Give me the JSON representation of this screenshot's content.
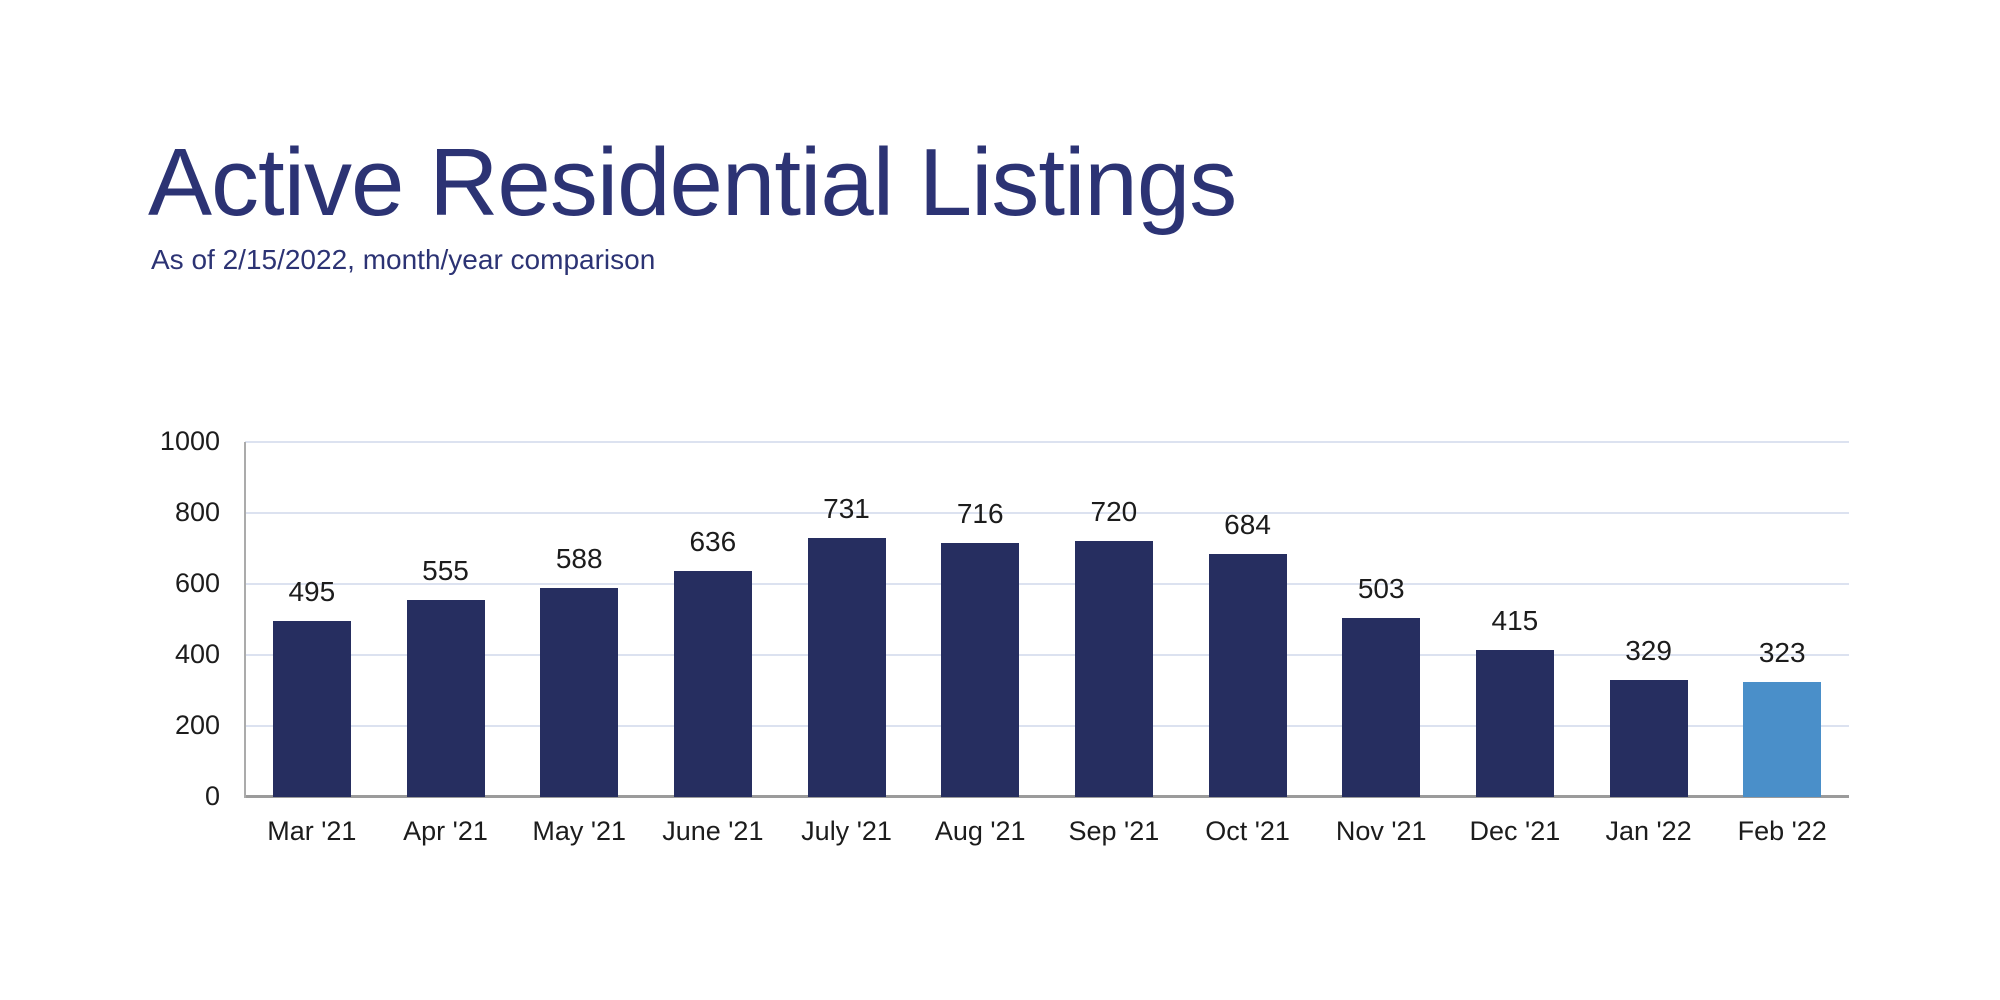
{
  "header": {
    "title": "Active Residential Listings",
    "subtitle": "As of 2/15/2022, month/year comparison"
  },
  "chart_data": {
    "type": "bar",
    "title": "Active Residential Listings",
    "subtitle": "As of 2/15/2022, month/year comparison",
    "categories": [
      "Mar '21",
      "Apr '21",
      "May '21",
      "June '21",
      "July '21",
      "Aug '21",
      "Sep '21",
      "Oct '21",
      "Nov '21",
      "Dec '21",
      "Jan '22",
      "Feb '22"
    ],
    "values": [
      495,
      555,
      588,
      636,
      731,
      716,
      720,
      684,
      503,
      415,
      329,
      323
    ],
    "xlabel": "",
    "ylabel": "",
    "ylim": [
      0,
      1000
    ],
    "yticks": [
      0,
      200,
      400,
      600,
      800,
      1000
    ],
    "grid": "horizontal",
    "legend": "none",
    "value_labels": true,
    "highlight_index": 11,
    "colors": {
      "bar": "#262e60",
      "highlight_bar": "#4a8fc9",
      "gridline": "#dce2f0",
      "axis_line": "#9b9b9b",
      "y_axis_line": "#ababab",
      "tick_text": "#1c1c1c",
      "title_text": "#2c3374"
    }
  }
}
